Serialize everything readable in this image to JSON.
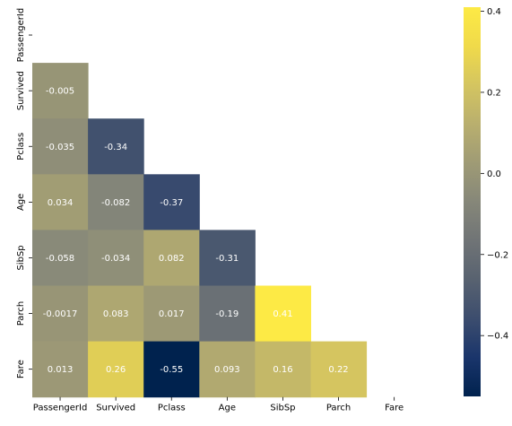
{
  "chart_data": {
    "type": "heatmap",
    "title": "",
    "xlabel": "",
    "ylabel": "",
    "variables": [
      "PassengerId",
      "Survived",
      "Pclass",
      "Age",
      "SibSp",
      "Parch",
      "Fare"
    ],
    "mask": "upper triangle (including diagonal)",
    "matrix": [
      [
        null,
        null,
        null,
        null,
        null,
        null,
        null
      ],
      [
        -0.005,
        null,
        null,
        null,
        null,
        null,
        null
      ],
      [
        -0.035,
        -0.34,
        null,
        null,
        null,
        null,
        null
      ],
      [
        0.034,
        -0.082,
        -0.37,
        null,
        null,
        null,
        null
      ],
      [
        -0.058,
        -0.034,
        0.082,
        -0.31,
        null,
        null,
        null
      ],
      [
        -0.0017,
        0.083,
        0.017,
        -0.19,
        0.41,
        null,
        null
      ],
      [
        0.013,
        0.26,
        -0.55,
        0.093,
        0.16,
        0.22,
        null
      ]
    ],
    "colorbar": {
      "colormap": "cividis",
      "vmin": -0.55,
      "vmax": 0.41,
      "ticks": [
        -0.4,
        -0.2,
        0.0,
        0.2,
        0.4
      ],
      "tick_labels": [
        "−0.4",
        "−0.2",
        "0.0",
        "0.2",
        "0.4"
      ],
      "position": "right"
    },
    "grid": false,
    "legend": "none"
  }
}
